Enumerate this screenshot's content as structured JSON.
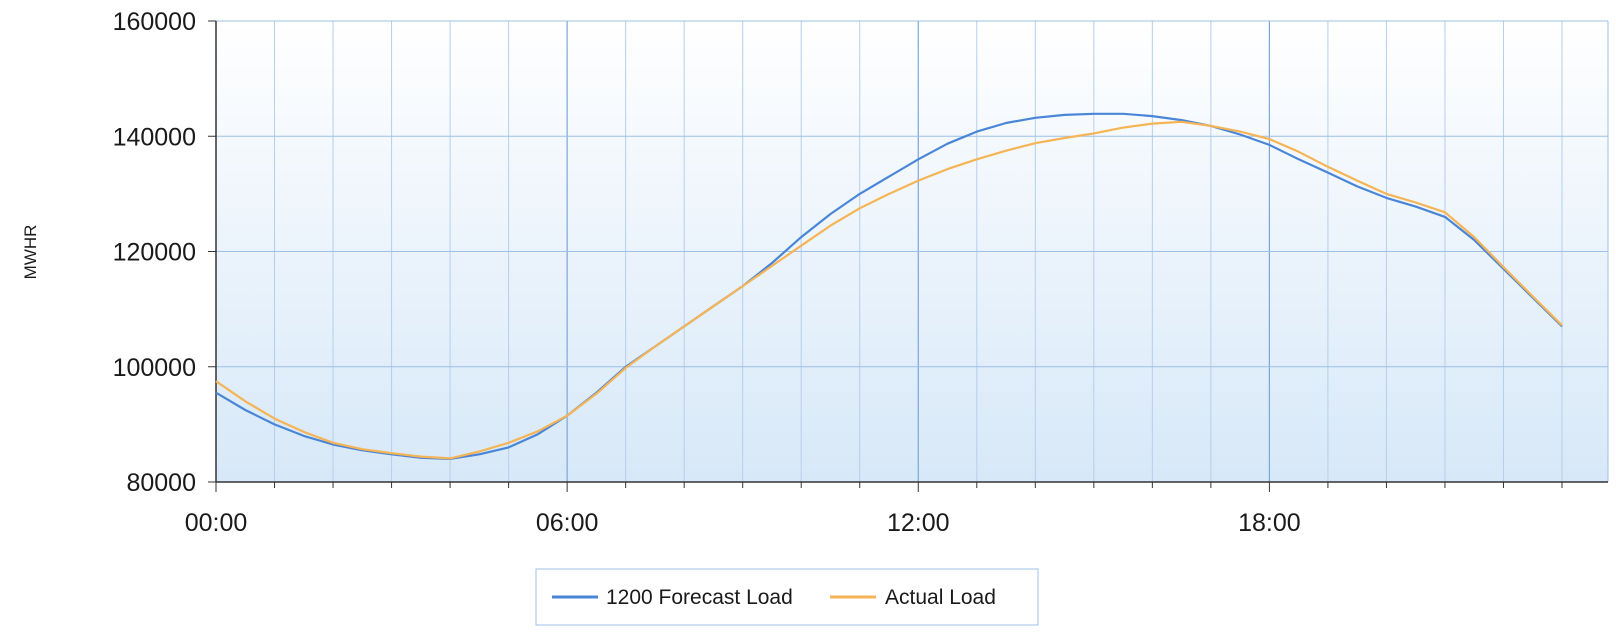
{
  "chart_data": {
    "type": "line",
    "title": "",
    "xlabel": "",
    "ylabel": "MWHR",
    "x_tick_labels": [
      "00:00",
      "06:00",
      "12:00",
      "18:00"
    ],
    "y_tick_labels": [
      "80000",
      "100000",
      "120000",
      "140000",
      "160000"
    ],
    "xlim": [
      0,
      23
    ],
    "ylim": [
      80000,
      160000
    ],
    "grid": true,
    "legend_position": "bottom-center",
    "x": [
      0,
      0.5,
      1,
      1.5,
      2,
      2.5,
      3,
      3.5,
      4,
      4.5,
      5,
      5.5,
      6,
      6.5,
      7,
      7.5,
      8,
      8.5,
      9,
      9.5,
      10,
      10.5,
      11,
      11.5,
      12,
      12.5,
      13,
      13.5,
      14,
      14.5,
      15,
      15.5,
      16,
      16.5,
      17,
      17.5,
      18,
      18.5,
      19,
      19.5,
      20,
      20.5,
      21,
      21.5,
      22,
      22.5,
      23
    ],
    "series": [
      {
        "name": "1200 Forecast Load",
        "color": "#4a86d8",
        "values": [
          95500,
          92500,
          90000,
          88000,
          86500,
          85500,
          84800,
          84200,
          84000,
          84800,
          86000,
          88300,
          91500,
          95500,
          100000,
          103500,
          107000,
          110500,
          114000,
          118000,
          122500,
          126500,
          130000,
          133000,
          136000,
          138700,
          140800,
          142300,
          143200,
          143700,
          143900,
          143900,
          143500,
          142800,
          141800,
          140300,
          138500,
          136000,
          133700,
          131300,
          129300,
          127800,
          126000,
          122000,
          117000,
          112000,
          107000
        ]
      },
      {
        "name": "Actual Load",
        "color": "#f5b455",
        "values": [
          97500,
          94000,
          91000,
          88700,
          86800,
          85700,
          85000,
          84400,
          84100,
          85300,
          86800,
          88800,
          91500,
          95300,
          99800,
          103500,
          107000,
          110500,
          114000,
          117500,
          121000,
          124500,
          127500,
          130000,
          132300,
          134300,
          136000,
          137500,
          138800,
          139700,
          140500,
          141500,
          142200,
          142500,
          141800,
          140800,
          139500,
          137300,
          134700,
          132300,
          130000,
          128500,
          126800,
          122500,
          117300,
          112200,
          107200
        ]
      }
    ]
  }
}
